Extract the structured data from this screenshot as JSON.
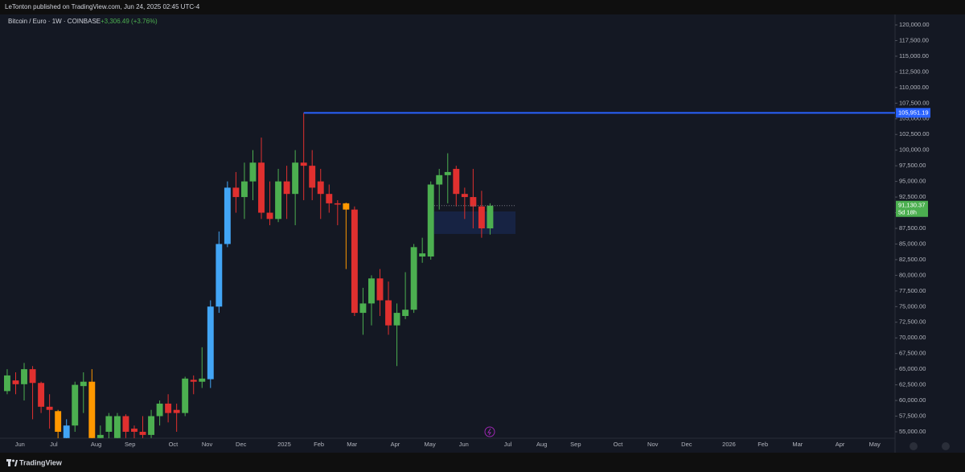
{
  "chart_data": {
    "type": "candlestick",
    "header": "LeTonton published on TradingView.com, Jun 24, 2025 02:45 UTC-4",
    "title": "Bitcoin / Euro · 1W · COINBASE",
    "change": "+3,306.49 (+3.76%)",
    "brand": "TradingView",
    "open": [
      61500,
      63200,
      62600,
      65000,
      62800,
      59000,
      58300,
      54000,
      56000,
      62300,
      63000,
      54000,
      55000,
      54000,
      57500,
      55500,
      55000,
      54500,
      57500,
      59500,
      58500,
      58000,
      63300,
      63000,
      63400,
      75000,
      85000,
      94000,
      92500,
      95000,
      98000,
      90000,
      89000,
      95000,
      93000,
      98000,
      97500,
      95000,
      93000,
      91500,
      91500,
      90500,
      74000,
      75500,
      79500,
      76000,
      72000,
      73500,
      74500,
      83000,
      83000,
      94500,
      96000,
      97000,
      93000,
      92500,
      91000,
      87500
    ],
    "high": [
      65000,
      64500,
      66000,
      65500,
      63000,
      61000,
      58500,
      57000,
      63000,
      64500,
      65000,
      56000,
      58000,
      58000,
      57800,
      56000,
      57500,
      58500,
      60000,
      61000,
      59500,
      63800,
      64000,
      68500,
      76000,
      87000,
      95000,
      96500,
      98000,
      100000,
      102000,
      95000,
      97000,
      97500,
      100000,
      105951.19,
      100000,
      97000,
      94500,
      92000,
      91600,
      91000,
      78000,
      80000,
      81000,
      79000,
      75500,
      80500,
      85000,
      86000,
      95000,
      97000,
      99500,
      97500,
      94000,
      97000,
      93500,
      91500
    ],
    "low": [
      61000,
      61000,
      60000,
      57000,
      58000,
      55500,
      53000,
      53000,
      55000,
      58000,
      53000,
      52000,
      52000,
      51000,
      54000,
      52500,
      54000,
      54000,
      56000,
      56500,
      55000,
      57500,
      61000,
      62000,
      62000,
      74000,
      84500,
      90000,
      89000,
      92000,
      89000,
      88000,
      88500,
      89000,
      88000,
      92000,
      92000,
      89000,
      90000,
      88000,
      81000,
      73500,
      70500,
      72000,
      73500,
      70500,
      65500,
      73000,
      74000,
      82000,
      82500,
      90500,
      91500,
      91000,
      89000,
      87500,
      86000,
      86500
    ],
    "close": [
      64000,
      62600,
      65000,
      62800,
      59000,
      58500,
      55000,
      56000,
      62500,
      63000,
      54000,
      54500,
      57500,
      57500,
      55000,
      55000,
      54500,
      57500,
      59500,
      58000,
      58000,
      63500,
      63000,
      63500,
      75000,
      85000,
      94000,
      92500,
      95000,
      98000,
      90000,
      89000,
      95000,
      93000,
      98000,
      97500,
      94000,
      93000,
      91500,
      91300,
      90500,
      74000,
      75500,
      79500,
      76000,
      72000,
      74000,
      74500,
      84500,
      83500,
      94500,
      96000,
      96500,
      93000,
      92500,
      91000,
      87500,
      91130.37
    ],
    "colors": [
      "#4caf50",
      "#e0302f",
      "#4caf50",
      "#e0302f",
      "#e0302f",
      "#e0302f",
      "#ff9800",
      "#42a5f5",
      "#4caf50",
      "#4caf50",
      "#ff9800",
      "#4caf50",
      "#4caf50",
      "#4caf50",
      "#e0302f",
      "#e0302f",
      "#e0302f",
      "#4caf50",
      "#4caf50",
      "#e0302f",
      "#e0302f",
      "#4caf50",
      "#e0302f",
      "#4caf50",
      "#42a5f5",
      "#42a5f5",
      "#42a5f5",
      "#e0302f",
      "#4caf50",
      "#4caf50",
      "#e0302f",
      "#e0302f",
      "#4caf50",
      "#e0302f",
      "#4caf50",
      "#e0302f",
      "#e0302f",
      "#e0302f",
      "#e0302f",
      "#e0302f",
      "#ff9800",
      "#e0302f",
      "#4caf50",
      "#4caf50",
      "#e0302f",
      "#e0302f",
      "#4caf50",
      "#4caf50",
      "#4caf50",
      "#4caf50",
      "#4caf50",
      "#4caf50",
      "#4caf50",
      "#e0302f",
      "#e0302f",
      "#e0302f",
      "#e0302f",
      "#4caf50"
    ],
    "close_label": "91,130.37",
    "countdown": "5d 18h",
    "hline": {
      "value": 105951.19,
      "label": "105,951.19",
      "from": 35,
      "color": "#2962ff"
    },
    "range_box": {
      "top": 90200,
      "bottom": 86600,
      "from": 50.4,
      "to": 60
    },
    "xlim": [
      -0.85,
      104.8
    ],
    "xticks": [
      {
        "value": 1.5,
        "label": "Jun"
      },
      {
        "value": 5.5,
        "label": "Jul"
      },
      {
        "value": 10.5,
        "label": "Aug"
      },
      {
        "value": 14.5,
        "label": "Sep"
      },
      {
        "value": 19.6,
        "label": "Oct"
      },
      {
        "value": 23.6,
        "label": "Nov"
      },
      {
        "value": 27.6,
        "label": "Dec"
      },
      {
        "value": 32.7,
        "label": "2025"
      },
      {
        "value": 36.8,
        "label": "Feb"
      },
      {
        "value": 40.7,
        "label": "Mar"
      },
      {
        "value": 45.8,
        "label": "Apr"
      },
      {
        "value": 49.9,
        "label": "May"
      },
      {
        "value": 53.9,
        "label": "Jun"
      },
      {
        "value": 59.1,
        "label": "Jul"
      },
      {
        "value": 63.1,
        "label": "Aug"
      },
      {
        "value": 67.1,
        "label": "Sep"
      },
      {
        "value": 72.1,
        "label": "Oct"
      },
      {
        "value": 76.2,
        "label": "Nov"
      },
      {
        "value": 80.2,
        "label": "Dec"
      },
      {
        "value": 85.2,
        "label": "2026"
      },
      {
        "value": 89.2,
        "label": "Feb"
      },
      {
        "value": 93.3,
        "label": "Mar"
      },
      {
        "value": 98.3,
        "label": "Apr"
      },
      {
        "value": 102.4,
        "label": "May"
      }
    ],
    "ylim": [
      53970,
      121670
    ],
    "yticks": [
      {
        "value": 55000,
        "label": "55,000.00"
      },
      {
        "value": 57500,
        "label": "57,500.00"
      },
      {
        "value": 60000,
        "label": "60,000.00"
      },
      {
        "value": 62500,
        "label": "62,500.00"
      },
      {
        "value": 65000,
        "label": "65,000.00"
      },
      {
        "value": 67500,
        "label": "67,500.00"
      },
      {
        "value": 70000,
        "label": "70,000.00"
      },
      {
        "value": 72500,
        "label": "72,500.00"
      },
      {
        "value": 75000,
        "label": "75,000.00"
      },
      {
        "value": 77500,
        "label": "77,500.00"
      },
      {
        "value": 80000,
        "label": "80,000.00"
      },
      {
        "value": 82500,
        "label": "82,500.00"
      },
      {
        "value": 85000,
        "label": "85,000.00"
      },
      {
        "value": 87500,
        "label": "87,500.00"
      },
      {
        "value": 90000,
        "label": "90,000.00"
      },
      {
        "value": 92500,
        "label": "92,500.00"
      },
      {
        "value": 95000,
        "label": "95,000.00"
      },
      {
        "value": 97500,
        "label": "97,500.00"
      },
      {
        "value": 100000,
        "label": "100,000.00"
      },
      {
        "value": 102500,
        "label": "102,500.00"
      },
      {
        "value": 105000,
        "label": "105,000.00"
      },
      {
        "value": 107500,
        "label": "107,500.00"
      },
      {
        "value": 110000,
        "label": "110,000.00"
      },
      {
        "value": 112500,
        "label": "112,500.00"
      },
      {
        "value": 115000,
        "label": "115,000.00"
      },
      {
        "value": 117500,
        "label": "117,500.00"
      },
      {
        "value": 120000,
        "label": "120,000.00"
      }
    ]
  }
}
